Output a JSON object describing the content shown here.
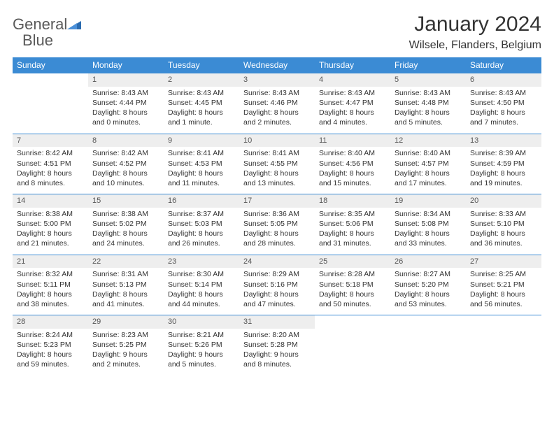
{
  "logo": {
    "word1": "General",
    "word2": "Blue"
  },
  "title": "January 2024",
  "location": "Wilsele, Flanders, Belgium",
  "colors": {
    "header_bg": "#3b8bd4",
    "header_text": "#ffffff",
    "daynum_bg": "#eeeeee",
    "row_border": "#3b8bd4",
    "logo_blue": "#3b7fc4"
  },
  "weekday_headers": [
    "Sunday",
    "Monday",
    "Tuesday",
    "Wednesday",
    "Thursday",
    "Friday",
    "Saturday"
  ],
  "weeks": [
    [
      null,
      {
        "n": "1",
        "sr": "Sunrise: 8:43 AM",
        "ss": "Sunset: 4:44 PM",
        "dl": "Daylight: 8 hours and 0 minutes."
      },
      {
        "n": "2",
        "sr": "Sunrise: 8:43 AM",
        "ss": "Sunset: 4:45 PM",
        "dl": "Daylight: 8 hours and 1 minute."
      },
      {
        "n": "3",
        "sr": "Sunrise: 8:43 AM",
        "ss": "Sunset: 4:46 PM",
        "dl": "Daylight: 8 hours and 2 minutes."
      },
      {
        "n": "4",
        "sr": "Sunrise: 8:43 AM",
        "ss": "Sunset: 4:47 PM",
        "dl": "Daylight: 8 hours and 4 minutes."
      },
      {
        "n": "5",
        "sr": "Sunrise: 8:43 AM",
        "ss": "Sunset: 4:48 PM",
        "dl": "Daylight: 8 hours and 5 minutes."
      },
      {
        "n": "6",
        "sr": "Sunrise: 8:43 AM",
        "ss": "Sunset: 4:50 PM",
        "dl": "Daylight: 8 hours and 7 minutes."
      }
    ],
    [
      {
        "n": "7",
        "sr": "Sunrise: 8:42 AM",
        "ss": "Sunset: 4:51 PM",
        "dl": "Daylight: 8 hours and 8 minutes."
      },
      {
        "n": "8",
        "sr": "Sunrise: 8:42 AM",
        "ss": "Sunset: 4:52 PM",
        "dl": "Daylight: 8 hours and 10 minutes."
      },
      {
        "n": "9",
        "sr": "Sunrise: 8:41 AM",
        "ss": "Sunset: 4:53 PM",
        "dl": "Daylight: 8 hours and 11 minutes."
      },
      {
        "n": "10",
        "sr": "Sunrise: 8:41 AM",
        "ss": "Sunset: 4:55 PM",
        "dl": "Daylight: 8 hours and 13 minutes."
      },
      {
        "n": "11",
        "sr": "Sunrise: 8:40 AM",
        "ss": "Sunset: 4:56 PM",
        "dl": "Daylight: 8 hours and 15 minutes."
      },
      {
        "n": "12",
        "sr": "Sunrise: 8:40 AM",
        "ss": "Sunset: 4:57 PM",
        "dl": "Daylight: 8 hours and 17 minutes."
      },
      {
        "n": "13",
        "sr": "Sunrise: 8:39 AM",
        "ss": "Sunset: 4:59 PM",
        "dl": "Daylight: 8 hours and 19 minutes."
      }
    ],
    [
      {
        "n": "14",
        "sr": "Sunrise: 8:38 AM",
        "ss": "Sunset: 5:00 PM",
        "dl": "Daylight: 8 hours and 21 minutes."
      },
      {
        "n": "15",
        "sr": "Sunrise: 8:38 AM",
        "ss": "Sunset: 5:02 PM",
        "dl": "Daylight: 8 hours and 24 minutes."
      },
      {
        "n": "16",
        "sr": "Sunrise: 8:37 AM",
        "ss": "Sunset: 5:03 PM",
        "dl": "Daylight: 8 hours and 26 minutes."
      },
      {
        "n": "17",
        "sr": "Sunrise: 8:36 AM",
        "ss": "Sunset: 5:05 PM",
        "dl": "Daylight: 8 hours and 28 minutes."
      },
      {
        "n": "18",
        "sr": "Sunrise: 8:35 AM",
        "ss": "Sunset: 5:06 PM",
        "dl": "Daylight: 8 hours and 31 minutes."
      },
      {
        "n": "19",
        "sr": "Sunrise: 8:34 AM",
        "ss": "Sunset: 5:08 PM",
        "dl": "Daylight: 8 hours and 33 minutes."
      },
      {
        "n": "20",
        "sr": "Sunrise: 8:33 AM",
        "ss": "Sunset: 5:10 PM",
        "dl": "Daylight: 8 hours and 36 minutes."
      }
    ],
    [
      {
        "n": "21",
        "sr": "Sunrise: 8:32 AM",
        "ss": "Sunset: 5:11 PM",
        "dl": "Daylight: 8 hours and 38 minutes."
      },
      {
        "n": "22",
        "sr": "Sunrise: 8:31 AM",
        "ss": "Sunset: 5:13 PM",
        "dl": "Daylight: 8 hours and 41 minutes."
      },
      {
        "n": "23",
        "sr": "Sunrise: 8:30 AM",
        "ss": "Sunset: 5:14 PM",
        "dl": "Daylight: 8 hours and 44 minutes."
      },
      {
        "n": "24",
        "sr": "Sunrise: 8:29 AM",
        "ss": "Sunset: 5:16 PM",
        "dl": "Daylight: 8 hours and 47 minutes."
      },
      {
        "n": "25",
        "sr": "Sunrise: 8:28 AM",
        "ss": "Sunset: 5:18 PM",
        "dl": "Daylight: 8 hours and 50 minutes."
      },
      {
        "n": "26",
        "sr": "Sunrise: 8:27 AM",
        "ss": "Sunset: 5:20 PM",
        "dl": "Daylight: 8 hours and 53 minutes."
      },
      {
        "n": "27",
        "sr": "Sunrise: 8:25 AM",
        "ss": "Sunset: 5:21 PM",
        "dl": "Daylight: 8 hours and 56 minutes."
      }
    ],
    [
      {
        "n": "28",
        "sr": "Sunrise: 8:24 AM",
        "ss": "Sunset: 5:23 PM",
        "dl": "Daylight: 8 hours and 59 minutes."
      },
      {
        "n": "29",
        "sr": "Sunrise: 8:23 AM",
        "ss": "Sunset: 5:25 PM",
        "dl": "Daylight: 9 hours and 2 minutes."
      },
      {
        "n": "30",
        "sr": "Sunrise: 8:21 AM",
        "ss": "Sunset: 5:26 PM",
        "dl": "Daylight: 9 hours and 5 minutes."
      },
      {
        "n": "31",
        "sr": "Sunrise: 8:20 AM",
        "ss": "Sunset: 5:28 PM",
        "dl": "Daylight: 9 hours and 8 minutes."
      },
      null,
      null,
      null
    ]
  ]
}
